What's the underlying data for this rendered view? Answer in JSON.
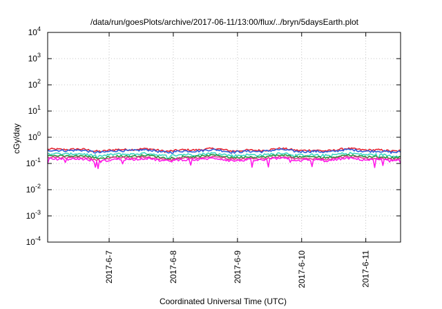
{
  "chart_data": {
    "type": "line",
    "title": "/data/run/goesPlots/archive/2017-06-11/13:00/flux/../bryn/5daysEarth.plot",
    "xlabel": "Coordinated Universal Time (UTC)",
    "ylabel": "cGy/day",
    "yscale": "log",
    "ylim": [
      0.0001,
      10000
    ],
    "xlim": [
      "2017-06-06T01:00",
      "2017-06-11T13:00"
    ],
    "grid": true,
    "ytick_labels": [
      {
        "base": "10",
        "exp": "-4",
        "value": 0.0001
      },
      {
        "base": "10",
        "exp": "-3",
        "value": 0.001
      },
      {
        "base": "10",
        "exp": "-2",
        "value": 0.01
      },
      {
        "base": "10",
        "exp": "-1",
        "value": 0.1
      },
      {
        "base": "10",
        "exp": "0",
        "value": 1
      },
      {
        "base": "10",
        "exp": "1",
        "value": 10
      },
      {
        "base": "10",
        "exp": "2",
        "value": 100
      },
      {
        "base": "10",
        "exp": "3",
        "value": 1000
      },
      {
        "base": "10",
        "exp": "4",
        "value": 10000
      }
    ],
    "xtick_labels": [
      {
        "label": "2017-6-7",
        "date": "2017-06-07T00:00"
      },
      {
        "label": "2017-6-8",
        "date": "2017-06-08T00:00"
      },
      {
        "label": "2017-6-9",
        "date": "2017-06-09T00:00"
      },
      {
        "label": "2017-6-10",
        "date": "2017-06-10T00:00"
      },
      {
        "label": "2017-6-11",
        "date": "2017-06-11T00:00"
      }
    ],
    "series": [
      {
        "color": "#e8232f",
        "level": 0.33,
        "noise": 0.045,
        "dip": 0.0
      },
      {
        "color": "#2f5bd8",
        "level": 0.3,
        "noise": 0.05,
        "dip": 0.0
      },
      {
        "color": "#3fd6c2",
        "level": 0.22,
        "noise": 0.05,
        "dip": 0.15
      },
      {
        "color": "#2a8f3a",
        "level": 0.185,
        "noise": 0.04,
        "dip": 0.1
      },
      {
        "color": "#e23a8c",
        "level": 0.16,
        "noise": 0.04,
        "dip": 0.1
      },
      {
        "color": "#ff1bea",
        "level": 0.14,
        "noise": 0.05,
        "dip": 0.35
      }
    ]
  }
}
